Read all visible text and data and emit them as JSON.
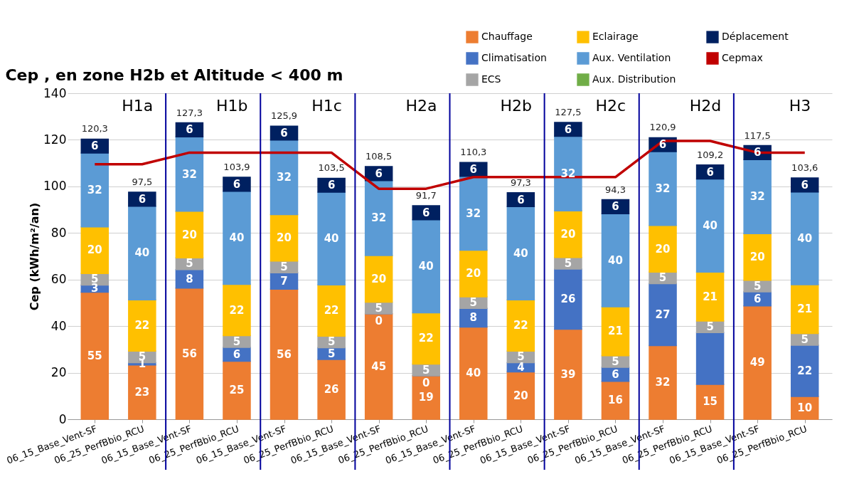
{
  "chart_data": {
    "type": "bar",
    "stacked": true,
    "title": "Cep , en zone H2b et Altitude < 400 m",
    "ylabel": "Cep (kWh/m²/an)",
    "categories": [
      "06_15_Base_Vent-SF",
      "06_25_PerfBbio_RCU",
      "06_15_Base_Vent-SF",
      "06_25_PerfBbio_RCU",
      "06_15_Base_Vent-SF",
      "06_25_PerfBbio_RCU",
      "06_15_Base_Vent-SF",
      "06_25_PerfBbio_RCU",
      "06_15_Base_Vent-SF",
      "06_25_PerfBbio_RCU",
      "06_15_Base_Vent-SF",
      "06_25_PerfBbio_RCU",
      "06_15_Base_Vent-SF",
      "06_25_PerfBbio_RCU",
      "06_15_Base_Vent-SF",
      "06_25_PerfBbio_RCU"
    ],
    "series": [
      {
        "name": "Chauffage",
        "color": "#ed7d31",
        "values": [
          54.6,
          23.3,
          56.3,
          24.9,
          55.9,
          25.7,
          45.3,
          18.7,
          39.6,
          20.3,
          38.7,
          16.3,
          31.6,
          15,
          48.7,
          9.8
        ],
        "value_labels": [
          "55",
          "23",
          "56",
          "25",
          "56",
          "26",
          "45",
          "19",
          "40",
          "20",
          "39",
          "16",
          "32",
          "15",
          "49",
          "10"
        ]
      },
      {
        "name": "Climatisation",
        "color": "#4472c4",
        "values": [
          3,
          1,
          8,
          6,
          7,
          5,
          0,
          0,
          8,
          4,
          25.8,
          6,
          26.6,
          22.2,
          6,
          22
        ],
        "value_labels": [
          "3",
          "1",
          "8",
          "6",
          "7",
          "5",
          "0",
          "0",
          "8",
          "4",
          "26",
          "6",
          "27",
          null,
          "6",
          "22"
        ]
      },
      {
        "name": "ECS",
        "color": "#a5a5a5",
        "values": [
          5,
          5,
          5,
          5,
          5,
          5,
          5,
          5,
          5,
          5,
          5,
          5,
          5,
          5,
          5,
          5
        ],
        "value_labels": [
          "5",
          "5",
          "5",
          "5",
          "5",
          "5",
          "5",
          "5",
          "5",
          "5",
          "5",
          "5",
          "5",
          "5",
          "5",
          "5"
        ]
      },
      {
        "name": "Eclairage",
        "color": "#ffc000",
        "values": [
          20,
          22,
          20,
          22,
          20,
          22,
          20,
          22,
          20,
          22,
          20,
          21,
          20,
          21,
          20,
          21
        ],
        "value_labels": [
          "20",
          "22",
          "20",
          "22",
          "20",
          "22",
          "20",
          "22",
          "20",
          "22",
          "20",
          "21",
          "20",
          "21",
          "20",
          "21"
        ]
      },
      {
        "name": "Aux. Ventilation",
        "color": "#5b9bd5",
        "values": [
          31.7,
          40.2,
          32,
          40,
          32,
          39.8,
          32.2,
          40,
          31.7,
          40,
          32,
          40,
          31.7,
          40,
          31.8,
          39.8
        ],
        "value_labels": [
          "32",
          "40",
          "32",
          "40",
          "32",
          "40",
          "32",
          "40",
          "32",
          "40",
          "32",
          "40",
          "32",
          "40",
          "32",
          "40"
        ]
      },
      {
        "name": "Aux. Distribution",
        "color": "#70ad47",
        "values": [
          null,
          null,
          null,
          null,
          null,
          null,
          null,
          null,
          null,
          null,
          null,
          null,
          null,
          null,
          null,
          null
        ]
      },
      {
        "name": "Déplacement",
        "color": "#002060",
        "values": [
          6,
          6,
          6,
          6,
          6,
          6,
          6,
          6,
          6,
          6,
          6,
          6,
          6,
          6,
          6,
          6
        ],
        "value_labels": [
          "6",
          "6",
          "6",
          "6",
          "6",
          "6",
          "6",
          "6",
          "6",
          "6",
          "6",
          "6",
          "6",
          "6",
          "6",
          "6"
        ]
      },
      {
        "name": "Cepmax",
        "type": "line",
        "color": "#c00000",
        "values": [
          109.5,
          109.5,
          114.5,
          114.5,
          114.5,
          114.5,
          99,
          99,
          104,
          104,
          104,
          104,
          119.5,
          119.5,
          114.5,
          114.5
        ]
      }
    ],
    "totals": [
      "120,3",
      "97,5",
      "127,3",
      "103,9",
      "125,9",
      "103,5",
      "108,5",
      "91,7",
      "110,3",
      "97,3",
      "127,5",
      "94,3",
      "120,9",
      "109,2",
      "117,5",
      "103,6"
    ],
    "annotations": [
      "H1a",
      "H1b",
      "H1c",
      "H2a",
      "H2b",
      "H2c",
      "H2d",
      "H3"
    ],
    "ylim": [
      0,
      140
    ],
    "yticks": [
      0,
      20,
      40,
      60,
      80,
      100,
      120,
      140
    ],
    "grid": "y",
    "legend": "top right"
  }
}
